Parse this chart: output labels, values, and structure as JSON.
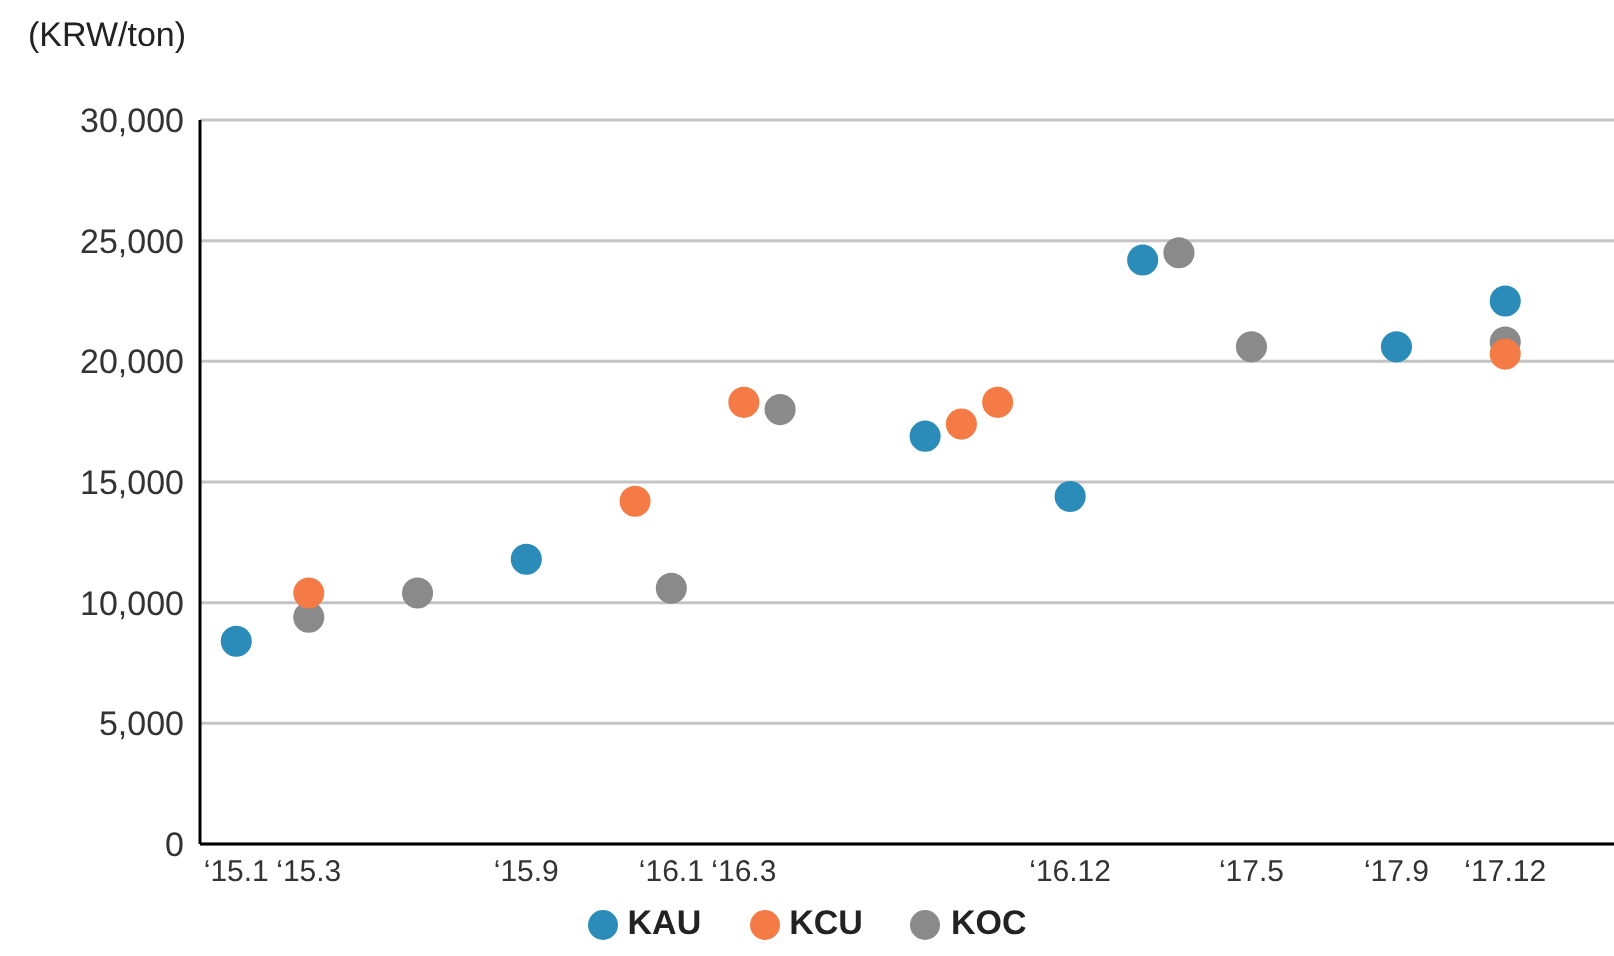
{
  "chart_data": {
    "type": "scatter",
    "ylabel": "(KRW/ton)",
    "xlim": [
      "2014-12",
      "2018-03"
    ],
    "xticks": [
      {
        "value": "2015-01",
        "label": "‘15.1"
      },
      {
        "value": "2015-03",
        "label": "‘15.3"
      },
      {
        "value": "2015-09",
        "label": "‘15.9"
      },
      {
        "value": "2016-01",
        "label": "‘16.1"
      },
      {
        "value": "2016-03",
        "label": "‘16.3"
      },
      {
        "value": "2016-12",
        "label": "‘16.12"
      },
      {
        "value": "2017-05",
        "label": "‘17.5"
      },
      {
        "value": "2017-09",
        "label": "‘17.9"
      },
      {
        "value": "2017-12",
        "label": "‘17.12"
      }
    ],
    "ylim": [
      0,
      30000
    ],
    "yticks": [
      0,
      {
        "value": 5000,
        "label": "5,000"
      },
      {
        "value": 10000,
        "label": "10,000"
      },
      {
        "value": 15000,
        "label": "15,000"
      },
      {
        "value": 20000,
        "label": "20,000"
      },
      {
        "value": 25000,
        "label": "25,000"
      },
      {
        "value": 30000,
        "label": "30,000"
      }
    ],
    "grid": "y",
    "legend": "bottom",
    "marker": "circle",
    "series": [
      {
        "name": "KAU",
        "color": "#2b8cba",
        "x": [
          "2015-01",
          "2015-09",
          "2016-08",
          "2016-12",
          "2017-02",
          "2017-09",
          "2017-12"
        ],
        "values": [
          8400,
          11800,
          16900,
          14400,
          24200,
          20600,
          22500
        ]
      },
      {
        "name": "KCU",
        "color": "#f47b46",
        "x": [
          "2015-03",
          "2015-12",
          "2016-03",
          "2016-09",
          "2016-10",
          "2017-12"
        ],
        "values": [
          10400,
          14200,
          18300,
          17400,
          18300,
          20300
        ]
      },
      {
        "name": "KOC",
        "color": "#8a8a8a",
        "x": [
          "2015-03",
          "2015-06",
          "2016-01",
          "2016-04",
          "2017-03",
          "2017-05",
          "2017-12"
        ],
        "values": [
          9400,
          10400,
          10600,
          18000,
          24500,
          20600,
          20800
        ]
      }
    ]
  }
}
